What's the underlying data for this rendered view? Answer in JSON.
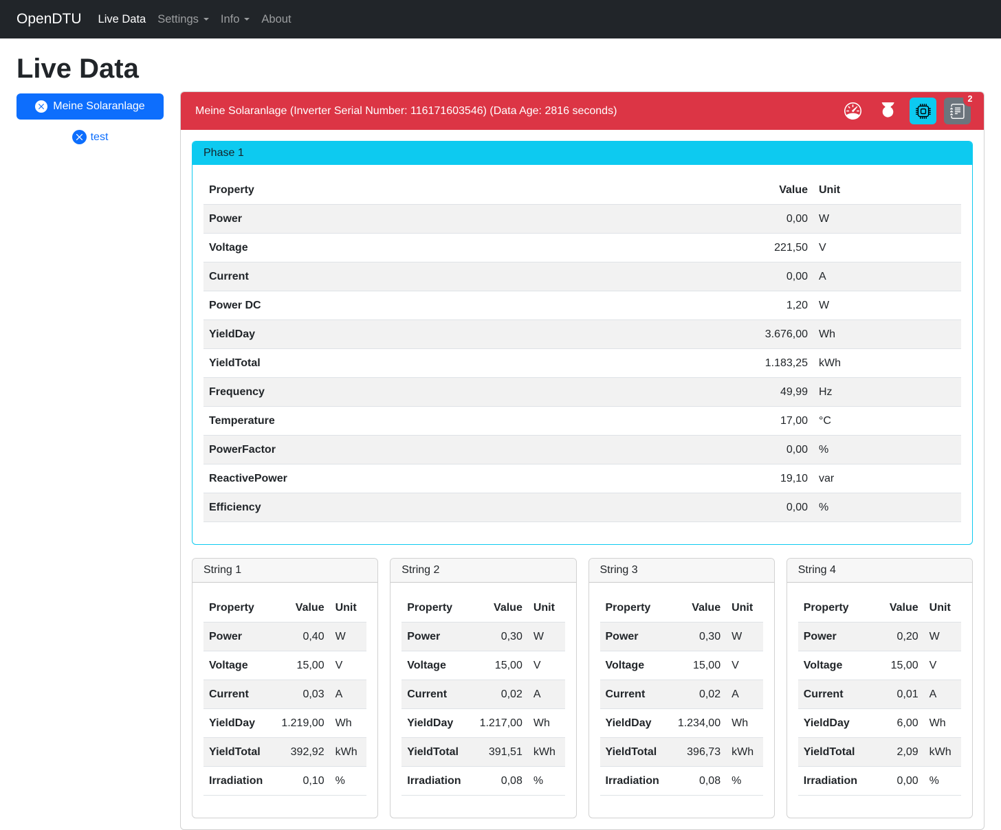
{
  "navbar": {
    "brand": "OpenDTU",
    "items": [
      {
        "label": "Live Data",
        "active": true,
        "dropdown": false
      },
      {
        "label": "Settings",
        "active": false,
        "dropdown": true
      },
      {
        "label": "Info",
        "active": false,
        "dropdown": true
      },
      {
        "label": "About",
        "active": false,
        "dropdown": false
      }
    ]
  },
  "page": {
    "title": "Live Data"
  },
  "sidebar": {
    "inverters": [
      {
        "label": "Meine Solaranlage",
        "selected": true,
        "icon": "x-circle-icon"
      },
      {
        "label": "test",
        "selected": false,
        "icon": "x-circle-icon"
      }
    ]
  },
  "inverter_card": {
    "header": "Meine Solaranlage (Inverter Serial Number: 116171603546) (Data Age: 2816 seconds)",
    "actions": {
      "limit": {
        "icon": "speedometer-icon"
      },
      "power": {
        "icon": "power-icon"
      },
      "restart": {
        "icon": "cpu-icon",
        "active": true
      },
      "eventlog": {
        "icon": "journal-text-icon",
        "badge": "2"
      }
    }
  },
  "columns": {
    "property": "Property",
    "value": "Value",
    "unit": "Unit"
  },
  "phase": {
    "title": "Phase 1",
    "rows": [
      [
        "Power",
        "0,00",
        "W"
      ],
      [
        "Voltage",
        "221,50",
        "V"
      ],
      [
        "Current",
        "0,00",
        "A"
      ],
      [
        "Power DC",
        "1,20",
        "W"
      ],
      [
        "YieldDay",
        "3.676,00",
        "Wh"
      ],
      [
        "YieldTotal",
        "1.183,25",
        "kWh"
      ],
      [
        "Frequency",
        "49,99",
        "Hz"
      ],
      [
        "Temperature",
        "17,00",
        "°C"
      ],
      [
        "PowerFactor",
        "0,00",
        "%"
      ],
      [
        "ReactivePower",
        "19,10",
        "var"
      ],
      [
        "Efficiency",
        "0,00",
        "%"
      ]
    ]
  },
  "strings": [
    {
      "title": "String 1",
      "rows": [
        [
          "Power",
          "0,40",
          "W"
        ],
        [
          "Voltage",
          "15,00",
          "V"
        ],
        [
          "Current",
          "0,03",
          "A"
        ],
        [
          "YieldDay",
          "1.219,00",
          "Wh"
        ],
        [
          "YieldTotal",
          "392,92",
          "kWh"
        ],
        [
          "Irradiation",
          "0,10",
          "%"
        ]
      ]
    },
    {
      "title": "String 2",
      "rows": [
        [
          "Power",
          "0,30",
          "W"
        ],
        [
          "Voltage",
          "15,00",
          "V"
        ],
        [
          "Current",
          "0,02",
          "A"
        ],
        [
          "YieldDay",
          "1.217,00",
          "Wh"
        ],
        [
          "YieldTotal",
          "391,51",
          "kWh"
        ],
        [
          "Irradiation",
          "0,08",
          "%"
        ]
      ]
    },
    {
      "title": "String 3",
      "rows": [
        [
          "Power",
          "0,30",
          "W"
        ],
        [
          "Voltage",
          "15,00",
          "V"
        ],
        [
          "Current",
          "0,02",
          "A"
        ],
        [
          "YieldDay",
          "1.234,00",
          "Wh"
        ],
        [
          "YieldTotal",
          "396,73",
          "kWh"
        ],
        [
          "Irradiation",
          "0,08",
          "%"
        ]
      ]
    },
    {
      "title": "String 4",
      "rows": [
        [
          "Power",
          "0,20",
          "W"
        ],
        [
          "Voltage",
          "15,00",
          "V"
        ],
        [
          "Current",
          "0,01",
          "A"
        ],
        [
          "YieldDay",
          "6,00",
          "Wh"
        ],
        [
          "YieldTotal",
          "2,09",
          "kWh"
        ],
        [
          "Irradiation",
          "0,00",
          "%"
        ]
      ]
    }
  ],
  "colors": {
    "primary": "#0d6efd",
    "danger": "#dc3545",
    "info": "#0dcaf0",
    "secondary": "#6c757d",
    "navbar-bg": "#212529"
  }
}
